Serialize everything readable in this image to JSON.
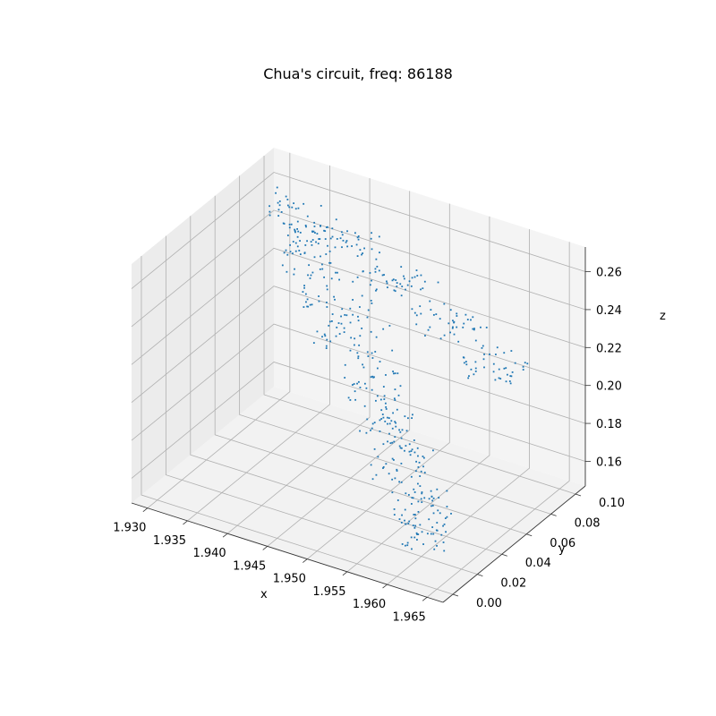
{
  "chart_data": {
    "type": "scatter3d",
    "title": "Chua's circuit, freq: 86188",
    "xlabel": "x",
    "ylabel": "y",
    "zlabel": "z",
    "xlim": [
      1.928,
      1.967
    ],
    "ylim": [
      -0.008,
      0.108
    ],
    "zlim": [
      0.147,
      0.273
    ],
    "xticks": [
      "1.930",
      "1.935",
      "1.940",
      "1.945",
      "1.950",
      "1.955",
      "1.960",
      "1.965"
    ],
    "yticks": [
      "0.00",
      "0.02",
      "0.04",
      "0.06",
      "0.08",
      "0.10"
    ],
    "zticks": [
      "0.16",
      "0.18",
      "0.20",
      "0.22",
      "0.24",
      "0.26"
    ],
    "grid": true,
    "series": [
      {
        "marker_color": "#1f77b4",
        "clusters": [
          {
            "x": [
              1.9285,
              1.9345
            ],
            "y": [
              0.098,
              0.106
            ],
            "z": [
              0.235,
              0.255
            ]
          },
          {
            "x": [
              1.932,
              1.938
            ],
            "y": [
              0.085,
              0.098
            ],
            "z": [
              0.225,
              0.245
            ]
          },
          {
            "x": [
              1.936,
              1.944
            ],
            "y": [
              0.072,
              0.09
            ],
            "z": [
              0.215,
              0.235
            ]
          },
          {
            "x": [
              1.94,
              1.948
            ],
            "y": [
              0.058,
              0.078
            ],
            "z": [
              0.205,
              0.225
            ]
          },
          {
            "x": [
              1.946,
              1.952
            ],
            "y": [
              0.045,
              0.062
            ],
            "z": [
              0.195,
              0.215
            ]
          },
          {
            "x": [
              1.95,
              1.956
            ],
            "y": [
              0.03,
              0.048
            ],
            "z": [
              0.188,
              0.205
            ]
          },
          {
            "x": [
              1.954,
              1.96
            ],
            "y": [
              0.015,
              0.035
            ],
            "z": [
              0.18,
              0.198
            ]
          },
          {
            "x": [
              1.958,
              1.964
            ],
            "y": [
              0.004,
              0.022
            ],
            "z": [
              0.172,
              0.19
            ]
          },
          {
            "x": [
              1.961,
              1.9655
            ],
            "y": [
              -0.006,
              0.01
            ],
            "z": [
              0.165,
              0.182
            ]
          },
          {
            "x": [
              1.934,
              1.942
            ],
            "y": [
              0.096,
              0.106
            ],
            "z": [
              0.238,
              0.248
            ]
          },
          {
            "x": [
              1.942,
              1.95
            ],
            "y": [
              0.086,
              0.1
            ],
            "z": [
              0.23,
              0.242
            ]
          },
          {
            "x": [
              1.95,
              1.958
            ],
            "y": [
              0.074,
              0.09
            ],
            "z": [
              0.222,
              0.236
            ]
          },
          {
            "x": [
              1.958,
              1.965
            ],
            "y": [
              0.062,
              0.08
            ],
            "z": [
              0.214,
              0.228
            ]
          }
        ]
      }
    ]
  }
}
